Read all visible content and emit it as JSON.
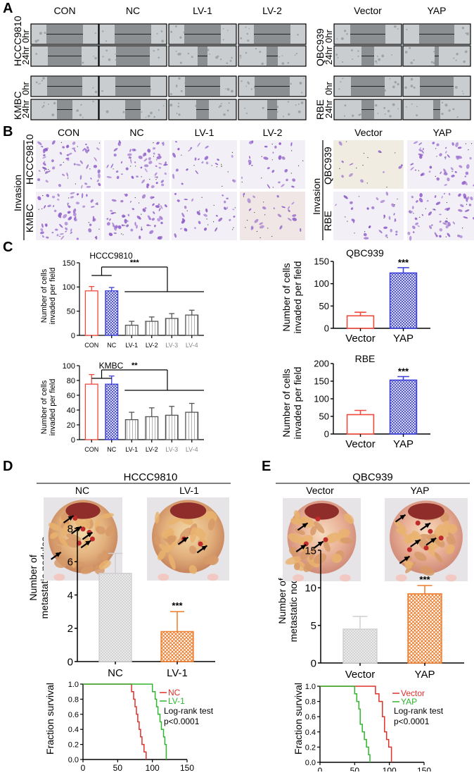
{
  "panels": {
    "A": "A",
    "B": "B",
    "C": "C",
    "D": "D",
    "E": "E"
  },
  "panelA": {
    "left_cols": [
      "CON",
      "NC",
      "LV-1",
      "LV-2"
    ],
    "right_cols": [
      "Vector",
      "YAP"
    ],
    "left_rows": [
      {
        "cell": "HCCC9810",
        "t0": "0hr",
        "t24": "24hr"
      },
      {
        "cell": "KMBC",
        "t0": "0hr",
        "t24": "24hr"
      }
    ],
    "right_rows": [
      {
        "cell": "QBC939",
        "t0": "0hr",
        "t24": "24hr"
      },
      {
        "cell": "RBE",
        "t0": "0hr",
        "t24": "24hr"
      }
    ],
    "bg_color": "#c9cdd0",
    "gap_color": "#8c8f92"
  },
  "panelB": {
    "left_cols": [
      "CON",
      "NC",
      "LV-1",
      "LV-2"
    ],
    "right_cols": [
      "Vector",
      "YAP"
    ],
    "left_label": "Invasion",
    "right_label": "Invasion",
    "left_rows": [
      "HCCC9810",
      "KMBC"
    ],
    "right_rows": [
      "QBC939",
      "RBE"
    ],
    "stain_color": "#8f5fc9"
  },
  "panelC": {
    "ylabel_line1": "Number of cells",
    "ylabel_line2": "invaded per field",
    "sig": "***",
    "sig2": "**"
  },
  "panelD": {
    "title": "HCCC9810",
    "photo_labels": [
      "NC",
      "LV-1"
    ],
    "ylabel_line1": "Number of",
    "ylabel_line2": "metastatic nodules",
    "surv_ylabel": "Fraction survival",
    "legend": [
      "NC",
      "LV-1"
    ],
    "test": "Log-rank test",
    "pval": "p<0.0001",
    "sig": "***"
  },
  "panelE": {
    "title": "QBC939",
    "photo_labels": [
      "Vector",
      "YAP"
    ],
    "ylabel_line1": "Number of",
    "ylabel_line2": "metastatic nodules",
    "surv_ylabel": "Fraction survival",
    "legend": [
      "Vector",
      "YAP"
    ],
    "test": "Log-rank test",
    "pval": "p<0.0001",
    "sig": "***"
  },
  "colors": {
    "red": "#f04a3c",
    "blue": "#3a3fd8",
    "red_dark": "#e0302a",
    "green": "#2fb52f",
    "grey": "#999999",
    "orange": "#f07a28"
  },
  "chart_data": [
    {
      "type": "bar",
      "title": "HCCC9810",
      "categories": [
        "CON",
        "NC",
        "LV-1",
        "LV-2",
        "LV-3",
        "LV-4"
      ],
      "values": [
        92,
        92,
        21,
        29,
        35,
        42
      ],
      "errors": [
        9,
        7,
        8,
        9,
        10,
        10
      ],
      "ylim": [
        0,
        150
      ],
      "yticks": [
        "0",
        "50",
        "100",
        "150"
      ],
      "sig": "***"
    },
    {
      "type": "bar",
      "title": "KMBC",
      "categories": [
        "CON",
        "NC",
        "LV-1",
        "LV-2",
        "LV-3",
        "LV-4"
      ],
      "values": [
        75,
        75,
        27,
        31,
        33,
        37
      ],
      "errors": [
        13,
        11,
        10,
        12,
        12,
        12
      ],
      "ylim": [
        0,
        100
      ],
      "yticks": [
        "0",
        "20",
        "40",
        "60",
        "80",
        "100"
      ],
      "sig": "**"
    },
    {
      "type": "bar",
      "title": "QBC939",
      "categories": [
        "Vector",
        "YAP"
      ],
      "values": [
        28,
        124
      ],
      "errors": [
        8,
        12
      ],
      "ylim": [
        0,
        150
      ],
      "yticks": [
        "0",
        "50",
        "100",
        "150"
      ],
      "sig": "***"
    },
    {
      "type": "bar",
      "title": "RBE",
      "categories": [
        "Vector",
        "YAP"
      ],
      "values": [
        55,
        153
      ],
      "errors": [
        12,
        10
      ],
      "ylim": [
        0,
        200
      ],
      "yticks": [
        "0",
        "50",
        "100",
        "150",
        "200"
      ],
      "sig": "***"
    },
    {
      "type": "bar",
      "categories": [
        "NC",
        "LV-1"
      ],
      "values": [
        5.3,
        1.8
      ],
      "errors": [
        1.2,
        1.2
      ],
      "ylim": [
        0,
        8
      ],
      "yticks": [
        "0",
        "2",
        "4",
        "6",
        "8"
      ],
      "sig": "***"
    },
    {
      "type": "bar",
      "categories": [
        "Vector",
        "YAP"
      ],
      "values": [
        4.5,
        9.2
      ],
      "errors": [
        1.7,
        1.1
      ],
      "ylim": [
        0,
        15
      ],
      "yticks": [
        "0",
        "5",
        "10",
        "15"
      ],
      "sig": "***"
    },
    {
      "type": "line",
      "xlim": [
        0,
        150
      ],
      "ylim": [
        0,
        1.0
      ],
      "xticks": [
        "0",
        "50",
        "100",
        "150"
      ],
      "yticks": [
        "0.0",
        "0.2",
        "0.4",
        "0.6",
        "0.8",
        "1.0"
      ],
      "series": [
        {
          "name": "NC",
          "points": [
            [
              0,
              1
            ],
            [
              70,
              1
            ],
            [
              70,
              0.9
            ],
            [
              73,
              0.9
            ],
            [
              73,
              0.8
            ],
            [
              75,
              0.8
            ],
            [
              75,
              0.7
            ],
            [
              77,
              0.7
            ],
            [
              77,
              0.6
            ],
            [
              79,
              0.6
            ],
            [
              79,
              0.5
            ],
            [
              81,
              0.5
            ],
            [
              81,
              0.4
            ],
            [
              83,
              0.4
            ],
            [
              83,
              0.3
            ],
            [
              85,
              0.3
            ],
            [
              85,
              0.2
            ],
            [
              88,
              0.2
            ],
            [
              88,
              0.1
            ],
            [
              91,
              0.1
            ],
            [
              91,
              0
            ]
          ]
        },
        {
          "name": "LV-1",
          "points": [
            [
              0,
              1
            ],
            [
              100,
              1
            ],
            [
              100,
              0.9
            ],
            [
              104,
              0.9
            ],
            [
              104,
              0.8
            ],
            [
              106,
              0.8
            ],
            [
              106,
              0.7
            ],
            [
              108,
              0.7
            ],
            [
              108,
              0.6
            ],
            [
              111,
              0.6
            ],
            [
              111,
              0.5
            ],
            [
              113,
              0.5
            ],
            [
              113,
              0.4
            ],
            [
              116,
              0.4
            ],
            [
              116,
              0.3
            ],
            [
              118,
              0.3
            ],
            [
              118,
              0.2
            ],
            [
              120,
              0.2
            ],
            [
              120,
              0
            ]
          ]
        }
      ]
    },
    {
      "type": "line",
      "xlim": [
        0,
        150
      ],
      "ylim": [
        0,
        1.0
      ],
      "xticks": [
        "0",
        "50",
        "100",
        "150"
      ],
      "yticks": [
        "0.0",
        "0.2",
        "0.4",
        "0.6",
        "0.8",
        "1.0"
      ],
      "series": [
        {
          "name": "Vector",
          "points": [
            [
              0,
              1
            ],
            [
              80,
              1
            ],
            [
              80,
              0.9
            ],
            [
              85,
              0.9
            ],
            [
              85,
              0.8
            ],
            [
              90,
              0.8
            ],
            [
              90,
              0.6
            ],
            [
              93,
              0.6
            ],
            [
              93,
              0.4
            ],
            [
              96,
              0.4
            ],
            [
              96,
              0.3
            ],
            [
              99,
              0.3
            ],
            [
              99,
              0.2
            ],
            [
              103,
              0.2
            ],
            [
              103,
              0
            ]
          ]
        },
        {
          "name": "YAP",
          "points": [
            [
              0,
              1
            ],
            [
              50,
              1
            ],
            [
              50,
              0.9
            ],
            [
              53,
              0.9
            ],
            [
              53,
              0.8
            ],
            [
              56,
              0.8
            ],
            [
              56,
              0.7
            ],
            [
              58,
              0.7
            ],
            [
              58,
              0.5
            ],
            [
              61,
              0.5
            ],
            [
              61,
              0.4
            ],
            [
              64,
              0.4
            ],
            [
              64,
              0.3
            ],
            [
              67,
              0.3
            ],
            [
              67,
              0.2
            ],
            [
              70,
              0.2
            ],
            [
              70,
              0.1
            ],
            [
              72,
              0.1
            ],
            [
              72,
              0
            ]
          ]
        }
      ]
    }
  ]
}
